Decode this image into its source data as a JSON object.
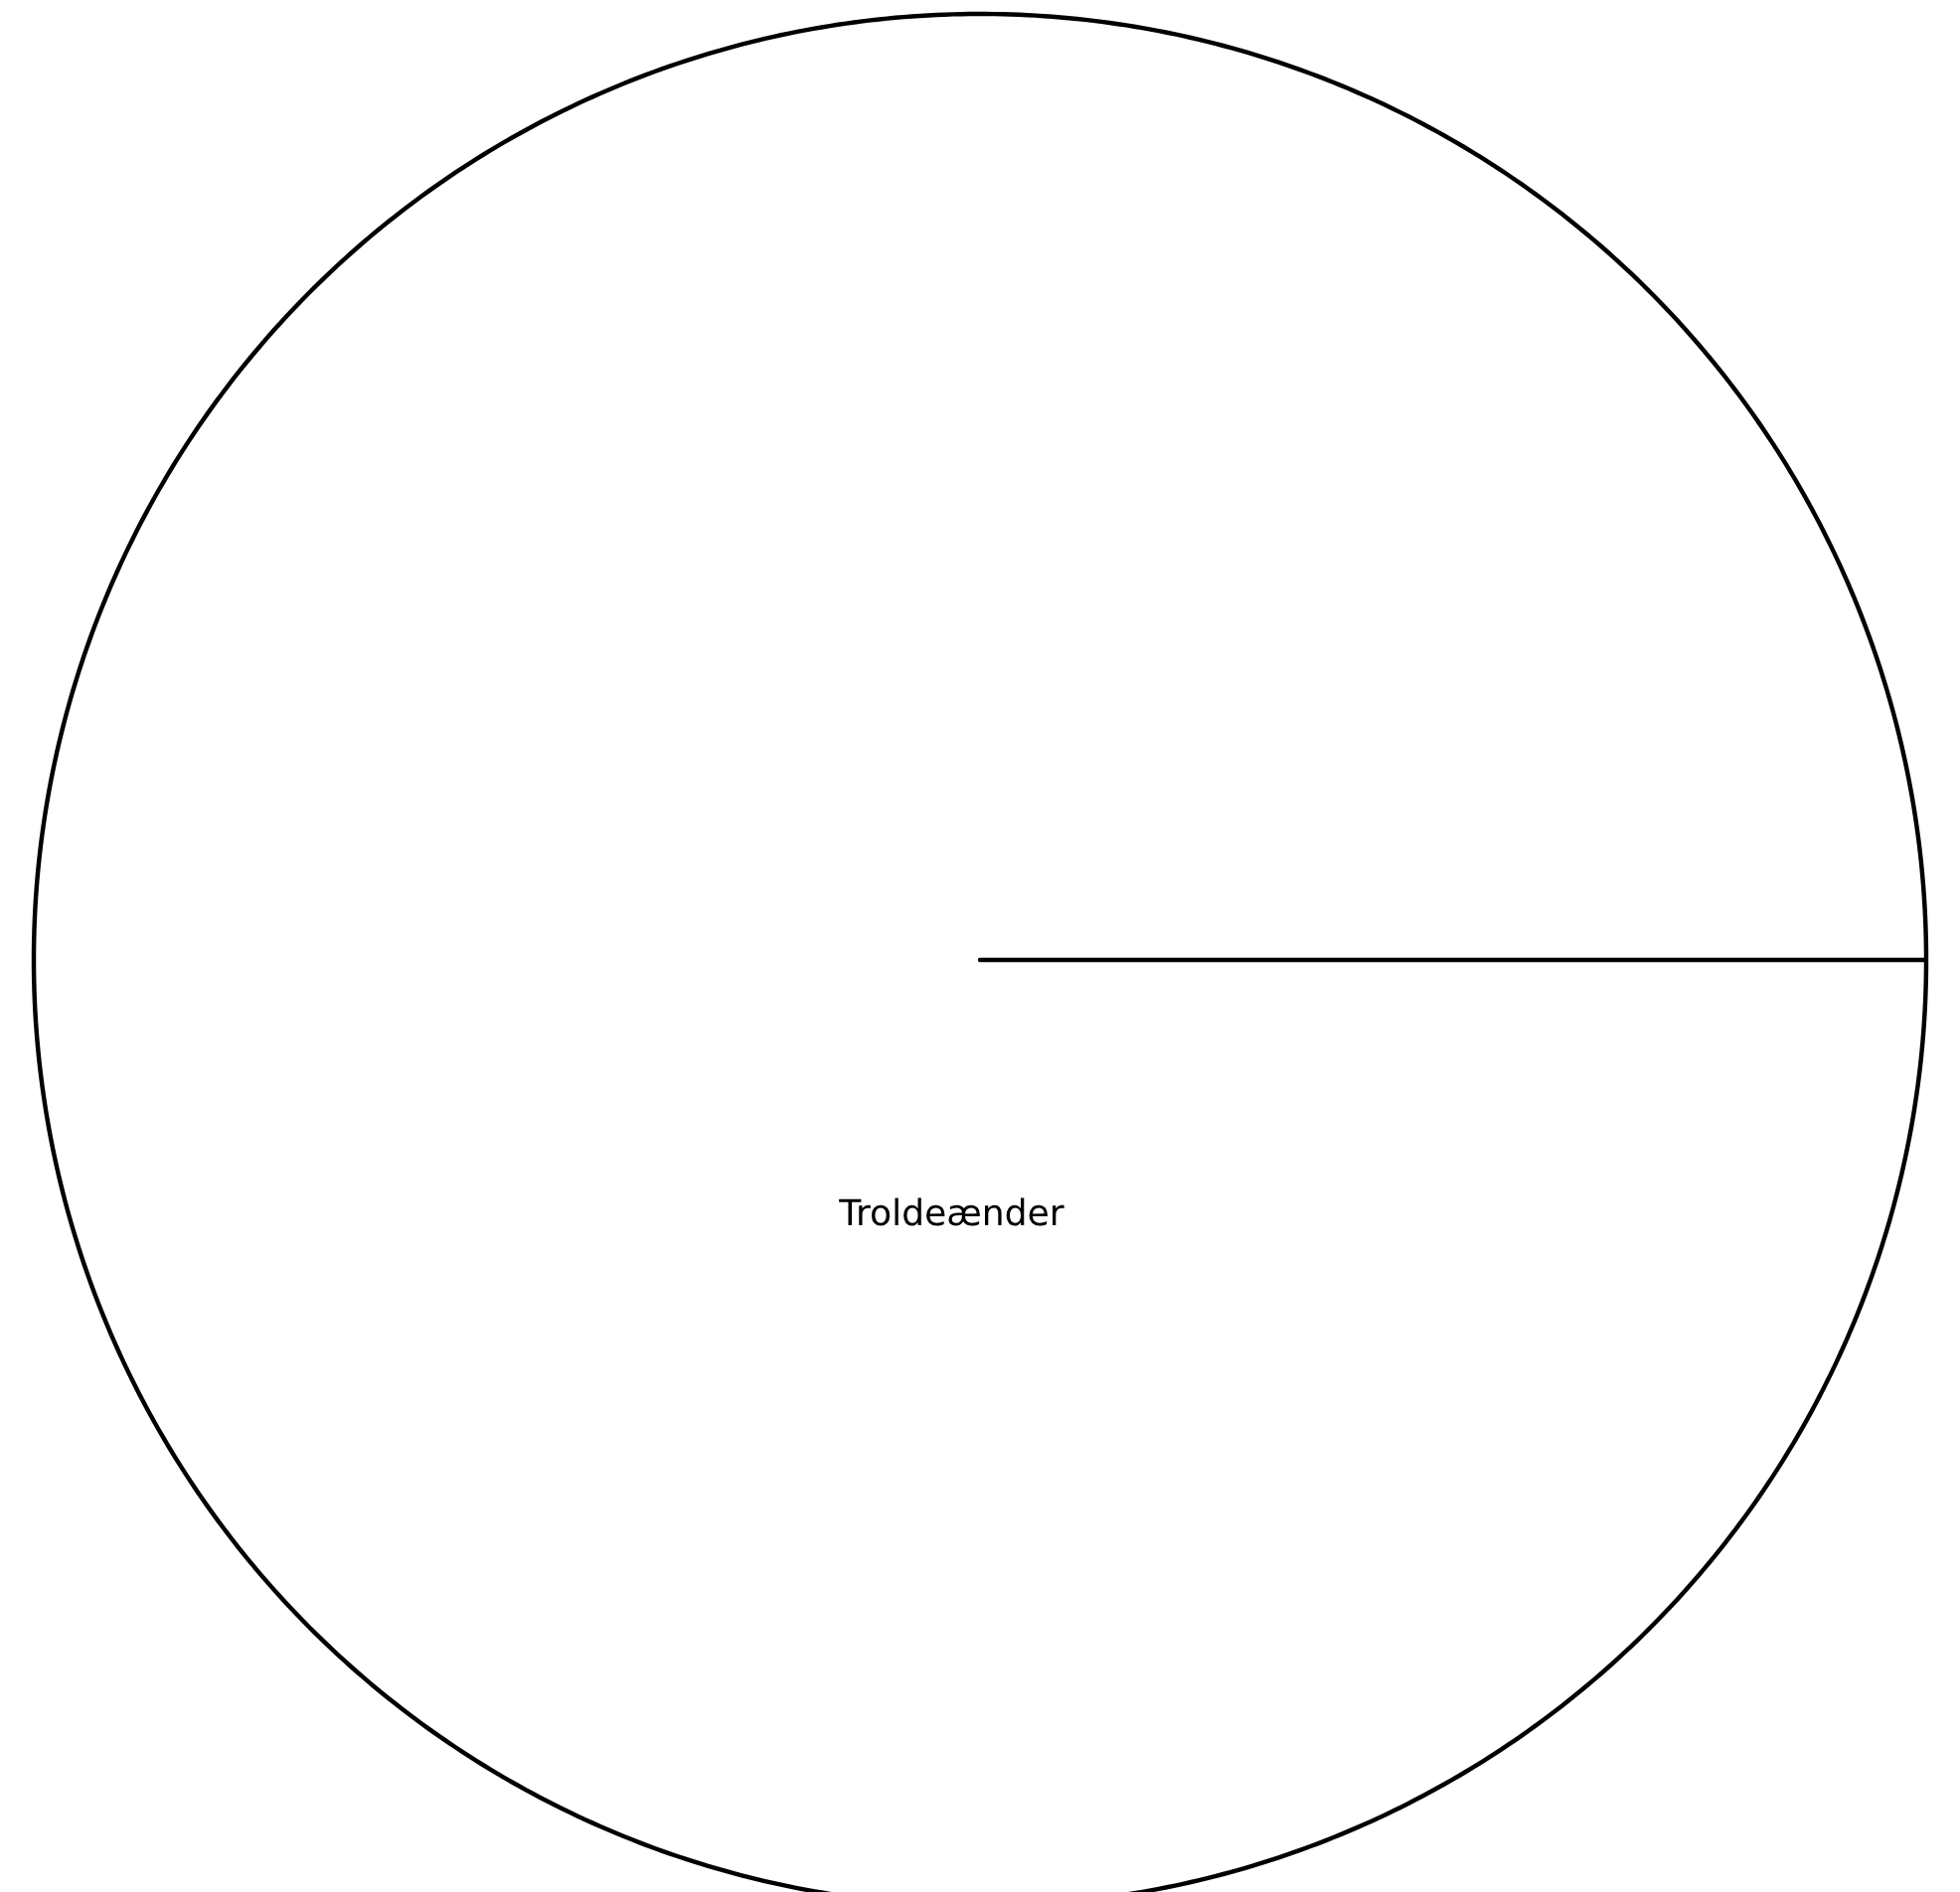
{
  "chart_data": {
    "type": "pie",
    "categories": [
      "Troldeænder"
    ],
    "values": [
      100
    ],
    "colors": [
      "#ffffff"
    ]
  }
}
